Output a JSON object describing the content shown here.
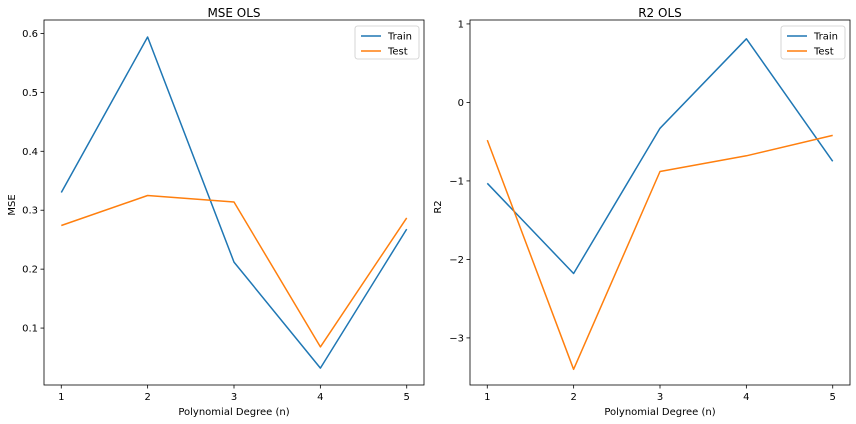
{
  "chart_data": [
    {
      "type": "line",
      "title": "MSE OLS",
      "xlabel": "Polynomial Degree (n)",
      "ylabel": "MSE",
      "x": [
        1,
        2,
        3,
        4,
        5
      ],
      "xticks": [
        "1",
        "2",
        "3",
        "4",
        "5"
      ],
      "xlim": [
        0.8,
        5.2
      ],
      "ylim": [
        0.0034,
        0.6228
      ],
      "yticks": [
        0.1,
        0.2,
        0.3,
        0.4,
        0.5,
        0.6
      ],
      "ytick_labels": [
        "0.1",
        "0.2",
        "0.3",
        "0.4",
        "0.5",
        "0.6"
      ],
      "grid": false,
      "legend_position": "top-right",
      "series": [
        {
          "name": "Train",
          "color": "#1f77b4",
          "values": [
            0.33,
            0.594,
            0.212,
            0.032,
            0.268
          ]
        },
        {
          "name": "Test",
          "color": "#ff7f0e",
          "values": [
            0.274,
            0.325,
            0.314,
            0.068,
            0.287
          ]
        }
      ]
    },
    {
      "type": "line",
      "title": "R2 OLS",
      "xlabel": "Polynomial Degree (n)",
      "ylabel": "R2",
      "x": [
        1,
        2,
        3,
        4,
        5
      ],
      "xticks": [
        "1",
        "2",
        "3",
        "4",
        "5"
      ],
      "xlim": [
        0.8,
        5.2
      ],
      "ylim": [
        -3.6,
        1.05
      ],
      "yticks": [
        1,
        0,
        -1,
        -2,
        -3
      ],
      "ytick_labels": [
        "1",
        "0",
        "−1",
        "−2",
        "−3"
      ],
      "grid": false,
      "legend_position": "top-right",
      "series": [
        {
          "name": "Train",
          "color": "#1f77b4",
          "values": [
            -1.03,
            -2.18,
            -0.33,
            0.81,
            -0.75
          ]
        },
        {
          "name": "Test",
          "color": "#ff7f0e",
          "values": [
            -0.48,
            -3.4,
            -0.88,
            -0.68,
            -0.42
          ]
        }
      ]
    }
  ]
}
